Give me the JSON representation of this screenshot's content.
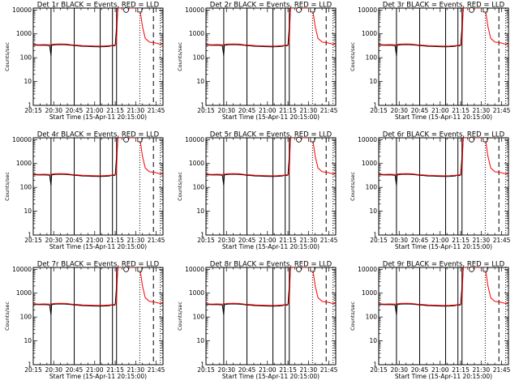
{
  "colors": {
    "events": "#000000",
    "lld": "#ff0000",
    "axes": "#000000",
    "background": "#ffffff"
  },
  "chart_data": [
    {
      "type": "line",
      "detector": "1r",
      "title": "Det 1r BLACK = Events, RED = LLD"
    },
    {
      "type": "line",
      "detector": "2r",
      "title": "Det 2r BLACK = Events, RED = LLD"
    },
    {
      "type": "line",
      "detector": "3r",
      "title": "Det 3r BLACK = Events, RED = LLD"
    },
    {
      "type": "line",
      "detector": "4r",
      "title": "Det 4r BLACK = Events, RED = LLD"
    },
    {
      "type": "line",
      "detector": "5r",
      "title": "Det 5r BLACK = Events, RED = LLD"
    },
    {
      "type": "line",
      "detector": "6r",
      "title": "Det 6r BLACK = Events, RED = LLD"
    },
    {
      "type": "line",
      "detector": "7r",
      "title": "Det 7r BLACK = Events, RED = LLD"
    },
    {
      "type": "line",
      "detector": "8r",
      "title": "Det 8r BLACK = Events, RED = LLD"
    },
    {
      "type": "line",
      "detector": "9r",
      "title": "Det 9r BLACK = Events, RED = LLD"
    }
  ],
  "shared": {
    "xlabel": "Start Time (15-Apr-11 20:15:00)",
    "ylabel": "Counts/sec",
    "x_unit": "minutes after 20:15",
    "xlim": [
      0,
      95
    ],
    "x_ticks": [
      {
        "value": 0,
        "label": "20:15"
      },
      {
        "value": 15,
        "label": "20:30"
      },
      {
        "value": 30,
        "label": "20:45"
      },
      {
        "value": 45,
        "label": "21:00"
      },
      {
        "value": 60,
        "label": "21:15"
      },
      {
        "value": 75,
        "label": "21:30"
      },
      {
        "value": 90,
        "label": "21:45"
      }
    ],
    "y_scale": "log",
    "ylim": [
      1,
      12000
    ],
    "y_ticks": [
      {
        "value": 1,
        "label": "1"
      },
      {
        "value": 10,
        "label": "10"
      },
      {
        "value": 100,
        "label": "100"
      },
      {
        "value": 1000,
        "label": "1000"
      },
      {
        "value": 10000,
        "label": "10000"
      }
    ],
    "solid_vlines": [
      13,
      30,
      49,
      58,
      61
    ],
    "dotted_vlines": [
      78,
      93
    ],
    "dashed_vlines": [
      88
    ],
    "markers": [
      {
        "shape": "circle",
        "x": 68,
        "y": 10000
      },
      {
        "shape": "square",
        "x": 78,
        "y": 10000
      }
    ],
    "series": [
      {
        "name": "Events",
        "color": "#000000",
        "points": [
          [
            0,
            340
          ],
          [
            4,
            330
          ],
          [
            8,
            335
          ],
          [
            12,
            320
          ],
          [
            13,
            120
          ],
          [
            13.5,
            330
          ],
          [
            16,
            350
          ],
          [
            20,
            355
          ],
          [
            24,
            350
          ],
          [
            28,
            330
          ],
          [
            32,
            315
          ],
          [
            36,
            300
          ],
          [
            40,
            295
          ],
          [
            44,
            290
          ],
          [
            48,
            285
          ],
          [
            52,
            290
          ],
          [
            56,
            300
          ],
          [
            58,
            330
          ],
          [
            59,
            310
          ],
          [
            60,
            330
          ],
          [
            62,
            12000
          ]
        ]
      },
      {
        "name": "LLD",
        "color": "#ff0000",
        "points": [
          [
            0,
            360
          ],
          [
            4,
            350
          ],
          [
            8,
            355
          ],
          [
            12,
            345
          ],
          [
            16,
            370
          ],
          [
            20,
            375
          ],
          [
            24,
            370
          ],
          [
            28,
            350
          ],
          [
            32,
            335
          ],
          [
            36,
            320
          ],
          [
            40,
            315
          ],
          [
            44,
            310
          ],
          [
            48,
            305
          ],
          [
            52,
            310
          ],
          [
            56,
            320
          ],
          [
            60,
            340
          ],
          [
            61,
            420
          ],
          [
            61.7,
            7000
          ],
          [
            62,
            12000
          ],
          [
            78,
            12000
          ],
          [
            80,
            2000
          ],
          [
            82,
            650
          ],
          [
            85,
            450
          ],
          [
            89,
            420
          ],
          [
            92,
            380
          ],
          [
            95,
            360
          ]
        ]
      }
    ]
  }
}
